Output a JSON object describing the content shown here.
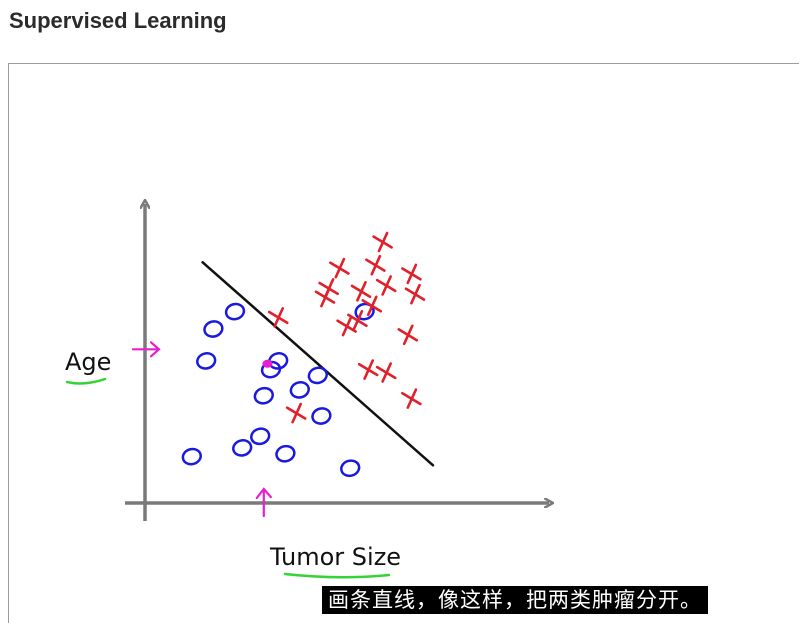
{
  "header": {
    "title": "Supervised Learning"
  },
  "slide": {
    "axis_y_label": "Age",
    "axis_x_label": "Tumor Size"
  },
  "plot": {
    "x_range": [
      0,
      100
    ],
    "y_range": [
      0,
      100
    ],
    "benign_points": [
      [
        13,
        16
      ],
      [
        27,
        19
      ],
      [
        32,
        23
      ],
      [
        39,
        17
      ],
      [
        57,
        12
      ],
      [
        49,
        30
      ],
      [
        37,
        49
      ],
      [
        43,
        39
      ],
      [
        33,
        37
      ],
      [
        35,
        46
      ],
      [
        48,
        44
      ],
      [
        17,
        49
      ],
      [
        19,
        60
      ],
      [
        25,
        66
      ],
      [
        61,
        66
      ]
    ],
    "malignant_points": [
      [
        42,
        31
      ],
      [
        74,
        36
      ],
      [
        62,
        46
      ],
      [
        67,
        45
      ],
      [
        73,
        58
      ],
      [
        56,
        61
      ],
      [
        59,
        63
      ],
      [
        63,
        68
      ],
      [
        60,
        73
      ],
      [
        67,
        75
      ],
      [
        75,
        72
      ],
      [
        37,
        64
      ],
      [
        50,
        71
      ],
      [
        51,
        74
      ],
      [
        54,
        81
      ],
      [
        64,
        82
      ],
      [
        66,
        90
      ],
      [
        74,
        79
      ]
    ],
    "query_point": [
      34,
      48
    ],
    "boundary": [
      [
        16,
        83
      ],
      [
        80,
        13
      ]
    ],
    "marker_x_value": 33,
    "marker_y_value": 53,
    "colors": {
      "benign": "#1a1adf",
      "malignant": "#e0202a",
      "boundary": "#111111",
      "axis": "#7a7a7a",
      "highlight": "#e81fce",
      "underline": "#35d335"
    }
  },
  "caption": {
    "text": "画条直线，像这样，把两类肿瘤分开。"
  }
}
